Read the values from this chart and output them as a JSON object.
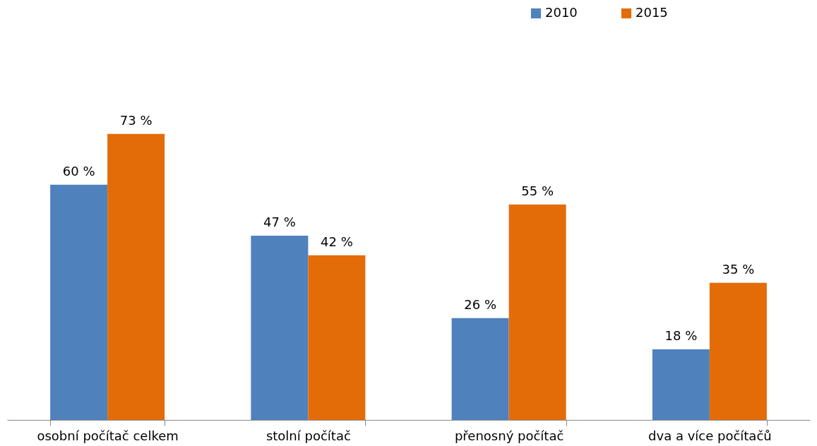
{
  "chart_data": {
    "type": "bar",
    "categories": [
      "osobní počítač celkem",
      "stolní počítač",
      "přenosný počítač",
      "dva a více počítačů"
    ],
    "legend": "top right",
    "series": [
      {
        "name": "2010",
        "color": "#4f81bd",
        "values": [
          60,
          47,
          26,
          18
        ],
        "value_labels": [
          "60 %",
          "47 %",
          "26 %",
          "18 %"
        ]
      },
      {
        "name": "2015",
        "color": "#e36c09",
        "values": [
          73,
          42,
          55,
          35
        ],
        "value_labels": [
          "73 %",
          "42 %",
          "55 %",
          "35 %"
        ]
      }
    ]
  }
}
